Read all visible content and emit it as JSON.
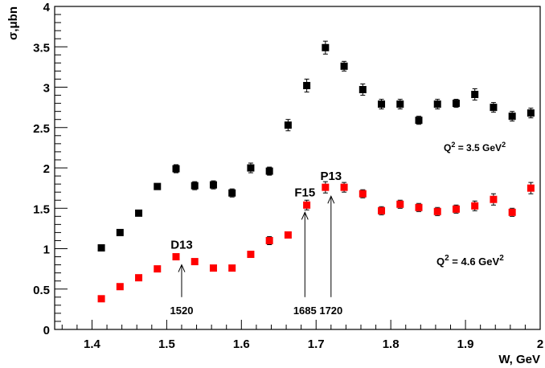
{
  "chart_data": {
    "type": "scatter",
    "title": "",
    "xlabel": "W, GeV",
    "ylabel": "σ,μbn",
    "xlim": [
      1.35,
      2.0
    ],
    "ylim": [
      0,
      4
    ],
    "x_ticks": [
      "1.4",
      "1.5",
      "1.6",
      "1.7",
      "1.8",
      "1.9",
      "2"
    ],
    "y_ticks": [
      "0",
      "0.5",
      "1",
      "1.5",
      "2",
      "2.5",
      "3",
      "3.5",
      "4"
    ],
    "series": [
      {
        "color": "#000000",
        "label": "Q² = 3.5 GeV²",
        "label_base": "Q",
        "label_exp": "2",
        "label_mid": " = 3.5 GeV",
        "label_unit_exp": "2",
        "points": [
          {
            "x": 1.4125,
            "y": 1.01,
            "err": 0.02
          },
          {
            "x": 1.4375,
            "y": 1.2,
            "err": 0.02
          },
          {
            "x": 1.4625,
            "y": 1.44,
            "err": 0.02
          },
          {
            "x": 1.4875,
            "y": 1.77,
            "err": 0.02
          },
          {
            "x": 1.5125,
            "y": 1.99,
            "err": 0.05
          },
          {
            "x": 1.5375,
            "y": 1.78,
            "err": 0.05
          },
          {
            "x": 1.5625,
            "y": 1.79,
            "err": 0.05
          },
          {
            "x": 1.5875,
            "y": 1.69,
            "err": 0.05
          },
          {
            "x": 1.6125,
            "y": 2.0,
            "err": 0.06
          },
          {
            "x": 1.6375,
            "y": 1.96,
            "err": 0.05
          },
          {
            "x": 1.6625,
            "y": 2.53,
            "err": 0.07
          },
          {
            "x": 1.6875,
            "y": 3.02,
            "err": 0.08
          },
          {
            "x": 1.7125,
            "y": 3.49,
            "err": 0.08
          },
          {
            "x": 1.7375,
            "y": 3.26,
            "err": 0.06
          },
          {
            "x": 1.7625,
            "y": 2.97,
            "err": 0.07
          },
          {
            "x": 1.7875,
            "y": 2.79,
            "err": 0.06
          },
          {
            "x": 1.8125,
            "y": 2.79,
            "err": 0.06
          },
          {
            "x": 1.8375,
            "y": 2.59,
            "err": 0.05
          },
          {
            "x": 1.8625,
            "y": 2.79,
            "err": 0.06
          },
          {
            "x": 1.8875,
            "y": 2.8,
            "err": 0.05
          },
          {
            "x": 1.9125,
            "y": 2.91,
            "err": 0.07
          },
          {
            "x": 1.9375,
            "y": 2.75,
            "err": 0.06
          },
          {
            "x": 1.9625,
            "y": 2.64,
            "err": 0.06
          },
          {
            "x": 1.9875,
            "y": 2.68,
            "err": 0.06
          }
        ]
      },
      {
        "color": "#ff0000",
        "label": "Q² = 4.6 GeV²",
        "label_base": "Q",
        "label_exp": "2",
        "label_mid": " = 4.6 GeV",
        "label_unit_exp": "2",
        "points": [
          {
            "x": 1.4125,
            "y": 0.38,
            "err": 0.02
          },
          {
            "x": 1.4375,
            "y": 0.53,
            "err": 0.02
          },
          {
            "x": 1.4625,
            "y": 0.64,
            "err": 0.02
          },
          {
            "x": 1.4875,
            "y": 0.75,
            "err": 0.02
          },
          {
            "x": 1.5125,
            "y": 0.9,
            "err": 0.02
          },
          {
            "x": 1.5375,
            "y": 0.84,
            "err": 0.02
          },
          {
            "x": 1.5625,
            "y": 0.76,
            "err": 0.02
          },
          {
            "x": 1.5875,
            "y": 0.76,
            "err": 0.02
          },
          {
            "x": 1.6125,
            "y": 0.93,
            "err": 0.02
          },
          {
            "x": 1.6375,
            "y": 1.1,
            "err": 0.05
          },
          {
            "x": 1.6625,
            "y": 1.17,
            "err": 0.03
          },
          {
            "x": 1.6875,
            "y": 1.54,
            "err": 0.06
          },
          {
            "x": 1.7125,
            "y": 1.76,
            "err": 0.07
          },
          {
            "x": 1.7375,
            "y": 1.76,
            "err": 0.06
          },
          {
            "x": 1.7625,
            "y": 1.68,
            "err": 0.05
          },
          {
            "x": 1.7875,
            "y": 1.47,
            "err": 0.05
          },
          {
            "x": 1.8125,
            "y": 1.55,
            "err": 0.05
          },
          {
            "x": 1.8375,
            "y": 1.51,
            "err": 0.05
          },
          {
            "x": 1.8625,
            "y": 1.46,
            "err": 0.05
          },
          {
            "x": 1.8875,
            "y": 1.49,
            "err": 0.05
          },
          {
            "x": 1.9125,
            "y": 1.53,
            "err": 0.06
          },
          {
            "x": 1.9375,
            "y": 1.61,
            "err": 0.07
          },
          {
            "x": 1.9625,
            "y": 1.45,
            "err": 0.05
          },
          {
            "x": 1.9875,
            "y": 1.75,
            "err": 0.07
          }
        ]
      }
    ],
    "annotations": [
      {
        "label": "D13",
        "w_label": "1520",
        "x": 1.52,
        "y_tip": 0.8,
        "y_tail": 0.4
      },
      {
        "label": "F15",
        "w_label": "1685",
        "x": 1.685,
        "y_tip": 1.45,
        "y_tail": 0.4
      },
      {
        "label": "P13",
        "w_label": "1720",
        "x": 1.72,
        "y_tip": 1.65,
        "y_tail": 0.4
      }
    ]
  }
}
